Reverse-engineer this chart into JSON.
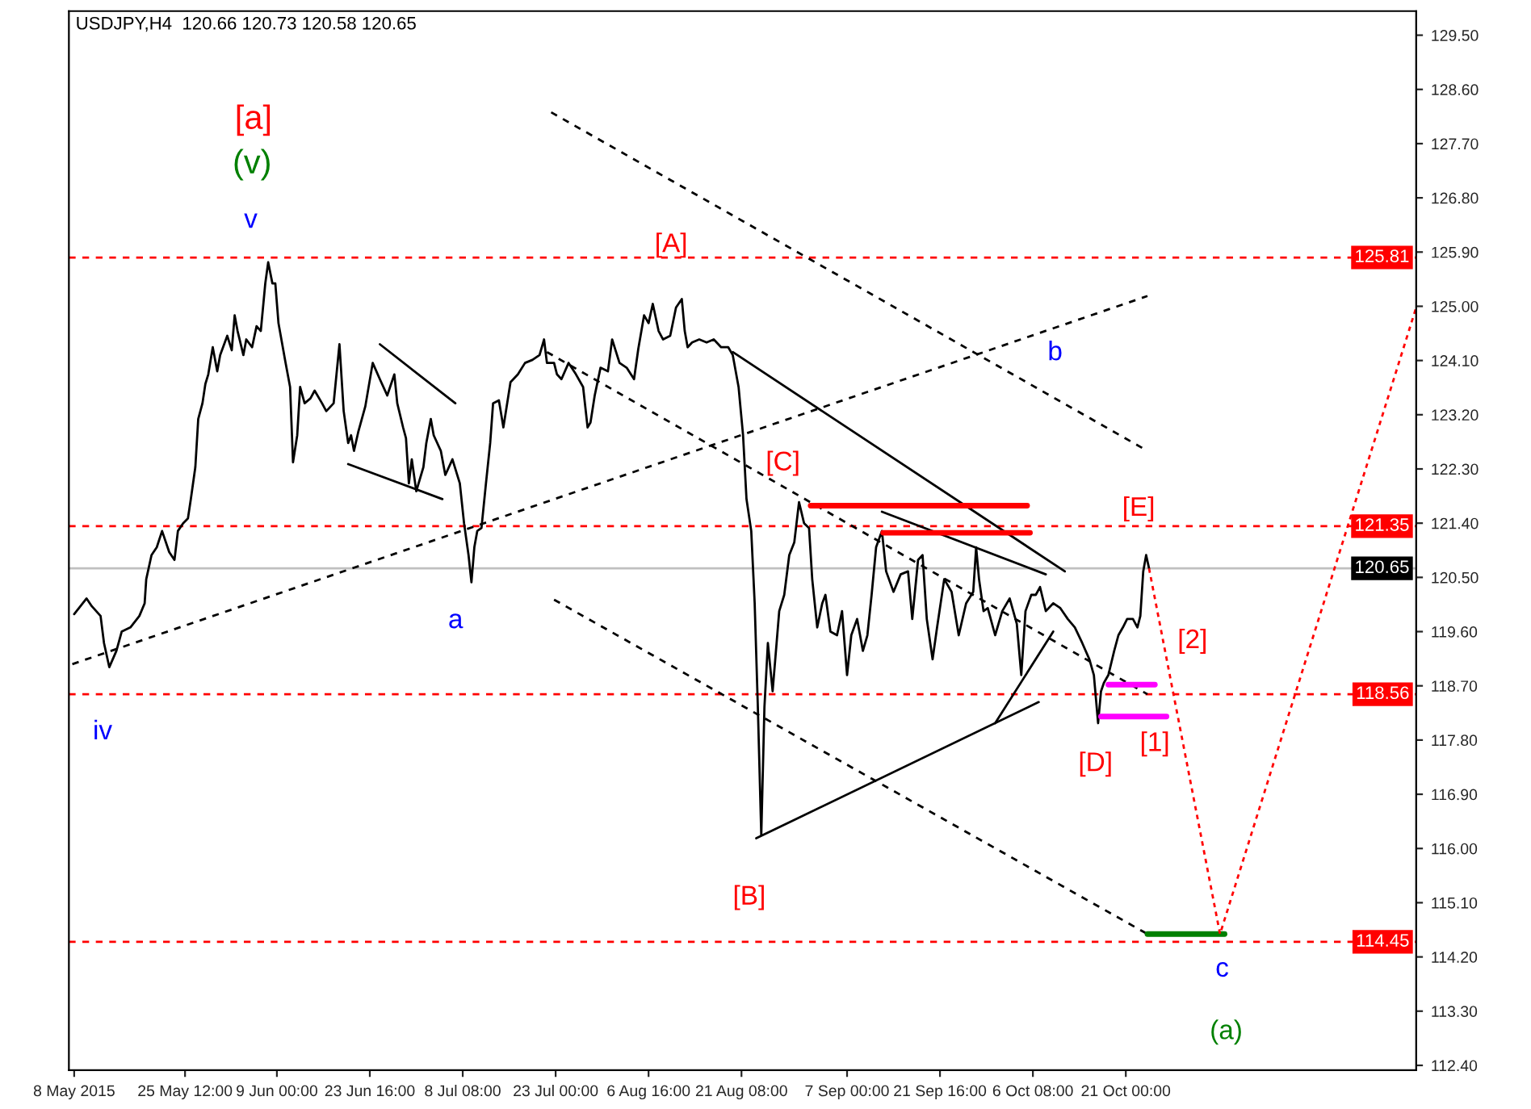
{
  "chart_data": {
    "type": "line",
    "title": "USDJPY,H4  120.66 120.73 120.58 120.65",
    "xlim": [
      "2015-05-07T04:00",
      "2015-12-05T20:00"
    ],
    "xticks": [
      {
        "value": "2015-05-08T00:00",
        "label": "8 May 2015"
      },
      {
        "value": "2015-05-25T12:00",
        "label": "25 May 12:00"
      },
      {
        "value": "2015-06-09T00:00",
        "label": "9 Jun 00:00"
      },
      {
        "value": "2015-06-23T16:00",
        "label": "23 Jun 16:00"
      },
      {
        "value": "2015-07-08T08:00",
        "label": "8 Jul 08:00"
      },
      {
        "value": "2015-07-23T00:00",
        "label": "23 Jul 00:00"
      },
      {
        "value": "2015-08-06T16:00",
        "label": "6 Aug 16:00"
      },
      {
        "value": "2015-08-21T08:00",
        "label": "21 Aug 08:00"
      },
      {
        "value": "2015-09-07T00:00",
        "label": "7 Sep 00:00"
      },
      {
        "value": "2015-09-21T16:00",
        "label": "21 Sep 16:00"
      },
      {
        "value": "2015-10-06T08:00",
        "label": "6 Oct 08:00"
      },
      {
        "value": "2015-10-21T00:00",
        "label": "21 Oct 00:00"
      }
    ],
    "ylim": [
      112.32,
      129.9
    ],
    "yticks": [
      {
        "value": 112.4,
        "label": "112.40"
      },
      {
        "value": 113.3,
        "label": "113.30"
      },
      {
        "value": 114.2,
        "label": "114.20"
      },
      {
        "value": 115.1,
        "label": "115.10"
      },
      {
        "value": 116.0,
        "label": "116.00"
      },
      {
        "value": 116.9,
        "label": "116.90"
      },
      {
        "value": 117.8,
        "label": "117.80"
      },
      {
        "value": 118.7,
        "label": "118.70"
      },
      {
        "value": 119.6,
        "label": "119.60"
      },
      {
        "value": 120.5,
        "label": "120.50"
      },
      {
        "value": 121.4,
        "label": "121.40"
      },
      {
        "value": 122.3,
        "label": "122.30"
      },
      {
        "value": 123.2,
        "label": "123.20"
      },
      {
        "value": 124.1,
        "label": "124.10"
      },
      {
        "value": 125.0,
        "label": "125.00"
      },
      {
        "value": 125.9,
        "label": "125.90"
      },
      {
        "value": 126.8,
        "label": "126.80"
      },
      {
        "value": 127.7,
        "label": "127.70"
      },
      {
        "value": 128.6,
        "label": "128.60"
      },
      {
        "value": 129.5,
        "label": "129.50"
      }
    ],
    "series": [
      {
        "color": "#000000",
        "line_style": "solid",
        "x": [
          "2015-05-08T00:00",
          "2015-05-09T23:00",
          "2015-05-10T19:00",
          "2015-05-12T04:00",
          "2015-05-12T17:00",
          "2015-05-13T13:00",
          "2015-05-14T16:00",
          "2015-05-15T12:00",
          "2015-05-16T21:00",
          "2015-05-18T07:00",
          "2015-05-19T03:00",
          "2015-05-19T09:00",
          "2015-05-20T05:00",
          "2015-05-21T01:00",
          "2015-05-21T21:00",
          "2015-05-23T00:00",
          "2015-05-23T20:00",
          "2015-05-24T09:00",
          "2015-05-25T05:00",
          "2015-05-25T23:00",
          "2015-05-26T10:00",
          "2015-05-27T03:00",
          "2015-05-27T14:00",
          "2015-05-28T06:00",
          "2015-05-28T17:00",
          "2015-05-29T04:00",
          "2015-05-29T21:00",
          "2015-05-30T14:00",
          "2015-05-31T01:00",
          "2015-06-01T04:00",
          "2015-06-01T21:00",
          "2015-06-02T08:00",
          "2015-06-02T19:00",
          "2015-06-03T17:00",
          "2015-06-04T04:00",
          "2015-06-05T02:00",
          "2015-06-05T19:00",
          "2015-06-06T11:00",
          "2015-06-07T04:00",
          "2015-06-07T15:00",
          "2015-06-08T07:00",
          "2015-06-08T18:00",
          "2015-06-09T06:00",
          "2015-06-09T17:00",
          "2015-06-10T09:00",
          "2015-06-11T02:00",
          "2015-06-11T13:00",
          "2015-06-12T05:00",
          "2015-06-12T16:00",
          "2015-06-13T09:00",
          "2015-06-14T07:00",
          "2015-06-14T23:00",
          "2015-06-16T03:00",
          "2015-06-16T19:00",
          "2015-06-17T23:00",
          "2015-06-18T21:00",
          "2015-06-19T13:00",
          "2015-06-20T06:00",
          "2015-06-20T17:00",
          "2015-06-21T04:00",
          "2015-06-21T20:00",
          "2015-06-22T23:00",
          "2015-06-24T03:00",
          "2015-06-25T06:00",
          "2015-06-26T10:00",
          "2015-06-27T13:00",
          "2015-06-28T00:00",
          "2015-06-28T22:00",
          "2015-06-29T09:00",
          "2015-06-29T20:00",
          "2015-06-30T07:00",
          "2015-07-01T00:00",
          "2015-07-02T03:00",
          "2015-07-02T14:00",
          "2015-07-03T07:00",
          "2015-07-03T18:00",
          "2015-07-04T21:00",
          "2015-07-05T14:00",
          "2015-07-06T17:00",
          "2015-07-07T21:00",
          "2015-07-08T13:00",
          "2015-07-09T06:00",
          "2015-07-09T17:00",
          "2015-07-10T04:00",
          "2015-07-10T15:00",
          "2015-07-11T07:00",
          "2015-07-12T00:00",
          "2015-07-12T16:00",
          "2015-07-13T03:00",
          "2015-07-14T01:00",
          "2015-07-14T18:00",
          "2015-07-15T21:00",
          "2015-07-17T01:00",
          "2015-07-18T04:00",
          "2015-07-19T08:00",
          "2015-07-20T11:00",
          "2015-07-21T04:00",
          "2015-07-21T15:00",
          "2015-07-22T18:00",
          "2015-07-23T05:00",
          "2015-07-23T22:00",
          "2015-07-25T01:00",
          "2015-07-26T05:00",
          "2015-07-27T08:00",
          "2015-07-28T01:00",
          "2015-07-28T12:00",
          "2015-07-29T04:00",
          "2015-07-30T02:00",
          "2015-07-31T06:00",
          "2015-07-31T22:00",
          "2015-08-02T02:00",
          "2015-08-03T05:00",
          "2015-08-04T09:00",
          "2015-08-05T01:00",
          "2015-08-05T23:00",
          "2015-08-06T16:00",
          "2015-08-07T08:00",
          "2015-08-08T06:00",
          "2015-08-08T23:00",
          "2015-08-10T02:00",
          "2015-08-11T00:00",
          "2015-08-11T22:00",
          "2015-08-12T09:00",
          "2015-08-12T20:00",
          "2015-08-13T13:00",
          "2015-08-14T16:00",
          "2015-08-15T20:00",
          "2015-08-16T23:00",
          "2015-08-18T03:00",
          "2015-08-19T06:00",
          "2015-08-19T23:00",
          "2015-08-20T21:00",
          "2015-08-21T14:00",
          "2015-08-22T03:00",
          "2015-08-22T21:00",
          "2015-08-23T10:00",
          "2015-08-23T22:00",
          "2015-08-24T11:00",
          "2015-08-24T23:00",
          "2015-08-25T12:00",
          "2015-08-26T06:00",
          "2015-08-27T07:00",
          "2015-08-28T02:00",
          "2015-08-28T21:00",
          "2015-08-29T16:00",
          "2015-08-30T10:00",
          "2015-08-31T05:00",
          "2015-09-01T00:00",
          "2015-09-01T12:00",
          "2015-09-02T07:00",
          "2015-09-03T02:00",
          "2015-09-03T14:00",
          "2015-09-04T09:00",
          "2015-09-05T10:00",
          "2015-09-06T05:00",
          "2015-09-07T00:00",
          "2015-09-07T16:00",
          "2015-09-08T14:00",
          "2015-09-09T12:00",
          "2015-09-10T05:00",
          "2015-09-10T21:00",
          "2015-09-11T14:00",
          "2015-09-12T12:00",
          "2015-09-13T04:00",
          "2015-09-14T08:00",
          "2015-09-15T11:00",
          "2015-09-16T15:00",
          "2015-09-17T07:00",
          "2015-09-18T05:00",
          "2015-09-18T22:00",
          "2015-09-19T14:00",
          "2015-09-20T12:00",
          "2015-09-21T05:00",
          "2015-09-22T08:00",
          "2015-09-23T12:00",
          "2015-09-24T15:00",
          "2015-09-25T19:00",
          "2015-09-26T22:00",
          "2015-09-27T09:00",
          "2015-09-27T20:00",
          "2015-09-28T13:00",
          "2015-09-29T05:00",
          "2015-09-30T09:00",
          "2015-10-01T12:00",
          "2015-10-02T16:00",
          "2015-10-03T19:00",
          "2015-10-04T12:00",
          "2015-10-05T04:00",
          "2015-10-06T02:00",
          "2015-10-06T19:00",
          "2015-10-07T11:00",
          "2015-10-08T09:00",
          "2015-10-09T13:00",
          "2015-10-10T16:00",
          "2015-10-11T20:00",
          "2015-10-12T23:00",
          "2015-10-14T03:00",
          "2015-10-15T06:00",
          "2015-10-15T23:00",
          "2015-10-16T15:00",
          "2015-10-17T02:00",
          "2015-10-17T13:00",
          "2015-10-18T06:00",
          "2015-10-19T04:00",
          "2015-10-19T20:00",
          "2015-10-20T13:00",
          "2015-10-21T05:00",
          "2015-10-22T03:00",
          "2015-10-22T20:00",
          "2015-10-23T07:00",
          "2015-10-23T18:00",
          "2015-10-24T05:00",
          "2015-10-24T16:00"
        ],
        "values": [
          119.89,
          120.15,
          120.02,
          119.86,
          119.41,
          119.01,
          119.28,
          119.6,
          119.67,
          119.86,
          120.07,
          120.47,
          120.87,
          121.0,
          121.27,
          120.92,
          120.79,
          121.27,
          121.4,
          121.48,
          121.8,
          122.33,
          123.13,
          123.39,
          123.71,
          123.87,
          124.32,
          123.92,
          124.19,
          124.51,
          124.27,
          124.85,
          124.59,
          124.19,
          124.45,
          124.32,
          124.67,
          124.59,
          125.38,
          125.73,
          125.38,
          125.38,
          124.72,
          124.45,
          124.06,
          123.66,
          122.41,
          122.86,
          123.66,
          123.39,
          123.47,
          123.6,
          123.39,
          123.26,
          123.39,
          124.37,
          123.26,
          122.73,
          122.86,
          122.6,
          122.91,
          123.34,
          124.06,
          123.79,
          123.52,
          123.87,
          123.39,
          122.99,
          122.81,
          122.06,
          122.46,
          121.93,
          122.33,
          122.73,
          123.13,
          122.86,
          122.6,
          122.2,
          122.46,
          122.06,
          121.4,
          120.87,
          120.42,
          121.0,
          121.27,
          121.32,
          122.06,
          122.73,
          123.39,
          123.44,
          122.99,
          123.74,
          123.87,
          124.06,
          124.11,
          124.19,
          124.45,
          124.06,
          124.06,
          123.87,
          123.79,
          124.06,
          123.87,
          123.66,
          122.99,
          123.07,
          123.52,
          123.98,
          123.92,
          124.45,
          124.06,
          123.98,
          123.79,
          124.29,
          124.85,
          124.72,
          125.04,
          124.59,
          124.45,
          124.51,
          124.98,
          125.12,
          124.59,
          124.32,
          124.4,
          124.45,
          124.4,
          124.45,
          124.32,
          124.32,
          124.19,
          123.66,
          122.86,
          121.8,
          121.27,
          120.07,
          118.35,
          116.22,
          118.35,
          119.41,
          118.61,
          119.94,
          120.21,
          120.87,
          121.08,
          121.75,
          121.4,
          121.32,
          120.47,
          119.67,
          120.07,
          120.21,
          119.6,
          119.54,
          119.94,
          118.88,
          119.54,
          119.81,
          119.28,
          119.54,
          120.21,
          121.0,
          121.27,
          120.6,
          120.26,
          120.55,
          120.6,
          119.81,
          120.79,
          120.87,
          119.81,
          119.14,
          119.67,
          120.47,
          120.26,
          119.54,
          120.07,
          120.26,
          121.0,
          120.47,
          119.94,
          119.99,
          119.54,
          119.94,
          120.15,
          119.73,
          118.88,
          119.94,
          120.21,
          120.21,
          120.34,
          119.94,
          120.07,
          119.99,
          119.81,
          119.67,
          119.41,
          119.14,
          118.88,
          118.08,
          118.61,
          118.75,
          118.88,
          119.28,
          119.54,
          119.67,
          119.81,
          119.81,
          119.67,
          119.86,
          120.6,
          120.87,
          120.65
        ]
      },
      {
        "color": "#000000",
        "line_style": "dashed",
        "x": [
          "2015-07-22T07:00",
          "2015-10-24T10:00"
        ],
        "values": [
          128.22,
          122.6
        ]
      },
      {
        "color": "#000000",
        "line_style": "dashed",
        "x": [
          "2015-07-22T18:00",
          "2015-10-24T10:00"
        ],
        "values": [
          120.13,
          114.58
        ]
      },
      {
        "color": "#000000",
        "line_style": "dashed",
        "x": [
          "2015-05-07T17:00",
          "2015-10-24T10:00"
        ],
        "values": [
          119.06,
          125.17
        ]
      },
      {
        "color": "#000000",
        "line_style": "dashed",
        "x": [
          "2015-07-21T15:00",
          "2015-10-24T10:00"
        ],
        "values": [
          124.24,
          118.56
        ]
      },
      {
        "color": "#000000",
        "line_style": "solid",
        "x": [
          "2015-08-19T23:00",
          "2015-10-11T09:00"
        ],
        "values": [
          124.24,
          120.6
        ]
      },
      {
        "color": "#000000",
        "line_style": "solid",
        "x": [
          "2015-08-23T16:00",
          "2015-10-07T06:00"
        ],
        "values": [
          116.17,
          118.43
        ]
      },
      {
        "color": "#000000",
        "line_style": "solid",
        "x": [
          "2015-09-30T09:00",
          "2015-10-09T13:00"
        ],
        "values": [
          118.08,
          119.6
        ]
      },
      {
        "color": "#000000",
        "line_style": "solid",
        "x": [
          "2015-09-12T12:00",
          "2015-10-08T09:00"
        ],
        "values": [
          121.59,
          120.55
        ]
      },
      {
        "color": "#000000",
        "line_style": "solid",
        "x": [
          "2015-06-25T06:00",
          "2015-07-07T04:00"
        ],
        "values": [
          124.37,
          123.39
        ]
      },
      {
        "color": "#000000",
        "line_style": "solid",
        "x": [
          "2015-06-20T06:00",
          "2015-07-05T03:00"
        ],
        "values": [
          122.38,
          121.8
        ]
      },
      {
        "color": "#ff0000",
        "line_style": "solid",
        "x": [
          "2015-09-01T06:00",
          "2015-10-05T10:00"
        ],
        "values": [
          121.69,
          121.69
        ]
      },
      {
        "color": "#ff0000",
        "line_style": "solid",
        "x": [
          "2015-09-12T17:00",
          "2015-10-05T21:00"
        ],
        "values": [
          121.24,
          121.24
        ]
      },
      {
        "color": "#ff00ff",
        "line_style": "solid",
        "x": [
          "2015-10-18T06:00",
          "2015-10-25T14:00"
        ],
        "values": [
          118.72,
          118.72
        ]
      },
      {
        "color": "#ff00ff",
        "line_style": "solid",
        "x": [
          "2015-10-17T02:00",
          "2015-10-27T10:00"
        ],
        "values": [
          118.19,
          118.19
        ]
      },
      {
        "color": "#008000",
        "line_style": "solid",
        "x": [
          "2015-10-24T10:00",
          "2015-11-05T14:00"
        ],
        "values": [
          114.58,
          114.58
        ]
      },
      {
        "color": "#ff0000",
        "line_style": "dotted",
        "x": [
          "2015-10-24T16:00",
          "2015-11-04T21:00",
          "2015-12-05T20:00"
        ],
        "values": [
          120.65,
          114.58,
          124.98
        ]
      }
    ],
    "ref_lines": [
      {
        "axis": "y",
        "value": 125.81,
        "label": "125.81",
        "color": "#ff0000",
        "line_style": "dashed"
      },
      {
        "axis": "y",
        "value": 121.35,
        "label": "121.35",
        "color": "#ff0000",
        "line_style": "dashed"
      },
      {
        "axis": "y",
        "value": 120.65,
        "label": "120.65",
        "color": "#c0c0c0",
        "line_style": "solid"
      },
      {
        "axis": "y",
        "value": 118.56,
        "label": "118.56",
        "color": "#ff0000",
        "line_style": "dashed"
      },
      {
        "axis": "y",
        "value": 114.45,
        "label": "114.45",
        "color": "#ff0000",
        "line_style": "dashed"
      }
    ],
    "annotations": [
      "[a]",
      "(v)",
      "v",
      "iv",
      "a",
      "[A]",
      "b",
      "[C]",
      "[E]",
      "[2]",
      "[1]",
      "[D]",
      "[B]",
      "c",
      "(a)"
    ]
  }
}
